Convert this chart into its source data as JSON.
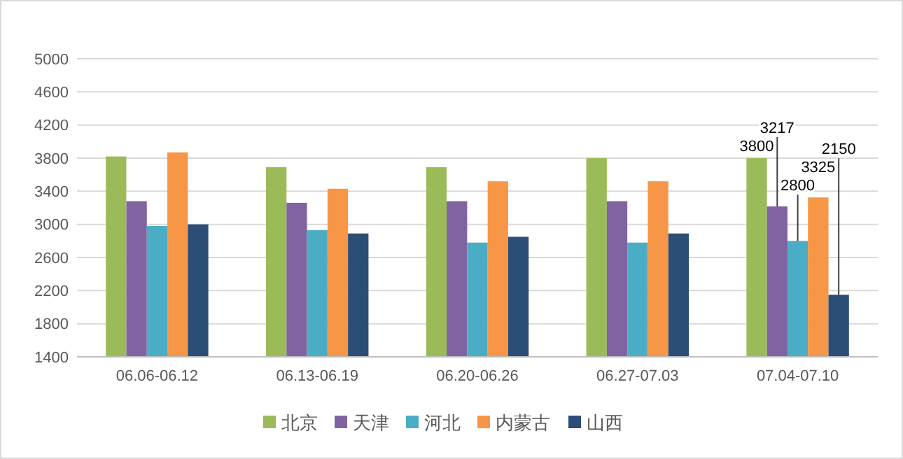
{
  "chart_data": {
    "type": "bar",
    "categories": [
      "06.06-06.12",
      "06.13-06.19",
      "06.20-06.26",
      "06.27-07.03",
      "07.04-07.10"
    ],
    "series": [
      {
        "name": "北京",
        "color": "#9bbb59",
        "values": [
          3820,
          3690,
          3690,
          3800,
          3800
        ],
        "value_labels": [
          null,
          null,
          null,
          null,
          "3800"
        ]
      },
      {
        "name": "天津",
        "color": "#8064a2",
        "values": [
          3280,
          3260,
          3280,
          3280,
          3217
        ],
        "value_labels": [
          null,
          null,
          null,
          null,
          "3217"
        ]
      },
      {
        "name": "河北",
        "color": "#4bacc6",
        "values": [
          2980,
          2930,
          2780,
          2780,
          2800
        ],
        "value_labels": [
          null,
          null,
          null,
          null,
          "2800"
        ]
      },
      {
        "name": "内蒙古",
        "color": "#f79646",
        "values": [
          3870,
          3430,
          3520,
          3520,
          3325
        ],
        "value_labels": [
          null,
          null,
          null,
          null,
          "3325"
        ]
      },
      {
        "name": "山西",
        "color": "#2c4d75",
        "values": [
          3000,
          2890,
          2850,
          2890,
          2150
        ],
        "value_labels": [
          null,
          null,
          null,
          null,
          "2150"
        ]
      }
    ],
    "ylim": [
      1400,
      5000
    ],
    "yticks": [
      1400,
      1800,
      2200,
      2600,
      3000,
      3400,
      3800,
      4200,
      4600,
      5000
    ],
    "grid": "y",
    "legend": "bottom"
  }
}
